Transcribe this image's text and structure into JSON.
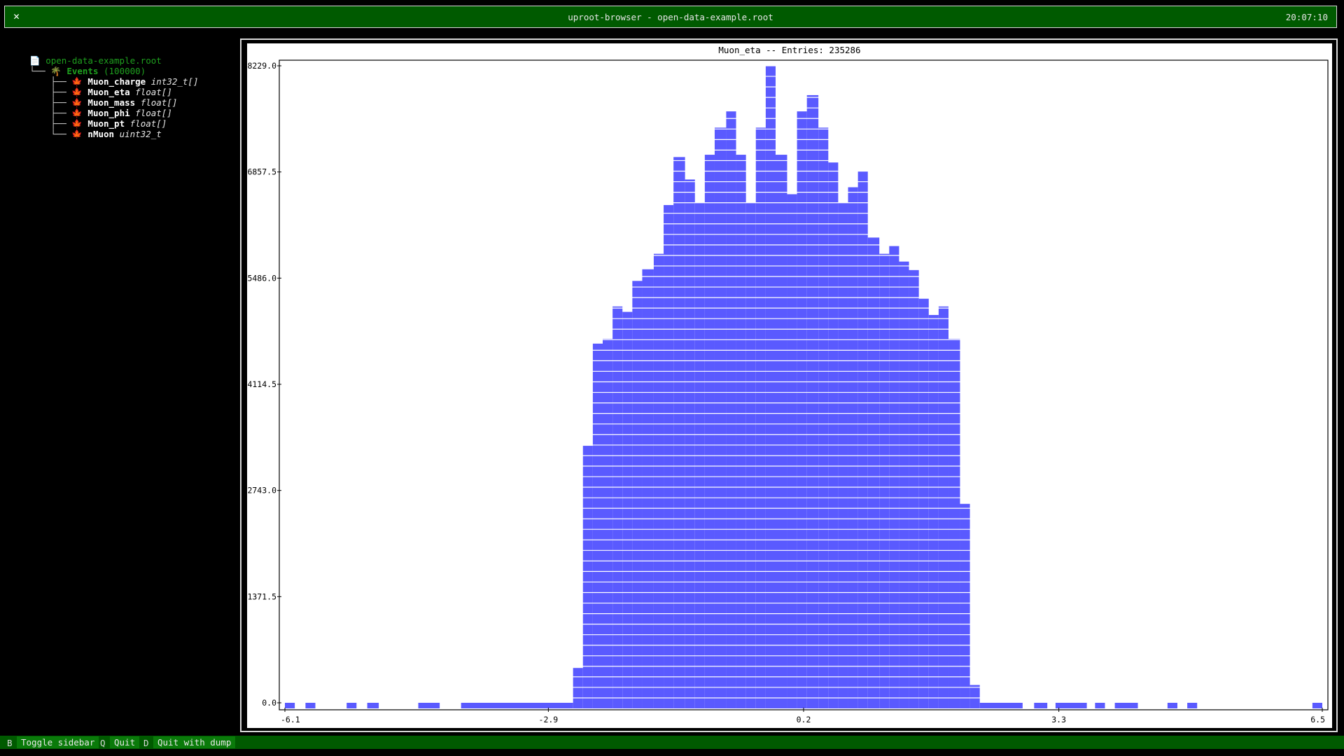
{
  "window": {
    "title": "uproot-browser - open-data-example.root",
    "clock": "20:07:10",
    "close_glyph": "✕"
  },
  "sidebar": {
    "root_file": "open-data-example.root",
    "tree": {
      "name": "Events",
      "count": "(100000)"
    },
    "branches": [
      {
        "name": "Muon_charge",
        "type": "int32_t[]",
        "icon": "leaf-array-icon"
      },
      {
        "name": "Muon_eta",
        "type": "float[]",
        "icon": "leaf-array-icon"
      },
      {
        "name": "Muon_mass",
        "type": "float[]",
        "icon": "leaf-array-icon"
      },
      {
        "name": "Muon_phi",
        "type": "float[]",
        "icon": "leaf-array-icon"
      },
      {
        "name": "Muon_pt",
        "type": "float[]",
        "icon": "leaf-array-icon"
      },
      {
        "name": "nMuon",
        "type": "uint32_t",
        "icon": "leaf-scalar-icon"
      }
    ]
  },
  "plot": {
    "title": "Muon_eta -- Entries: 235286"
  },
  "chart_data": {
    "type": "bar",
    "title": "Muon_eta -- Entries: 235286",
    "xlabel": "",
    "ylabel": "",
    "xlim": [
      -6.1,
      6.5
    ],
    "ylim": [
      0,
      8229.0
    ],
    "xticks": [
      "-6.1",
      "-2.9",
      "0.2",
      "3.3",
      "6.5"
    ],
    "yticks": [
      "0.0",
      "1371.5",
      "2743.0",
      "4114.5",
      "5486.0",
      "6857.5",
      "8229.0"
    ],
    "bar_color": "#5a5aff",
    "grid": false,
    "bins": [
      {
        "x0": -6.1,
        "x1": -5.98,
        "y": 0
      },
      {
        "x0": -5.85,
        "x1": -5.73,
        "y": 0
      },
      {
        "x0": -5.35,
        "x1": -5.23,
        "y": 0
      },
      {
        "x0": -5.1,
        "x1": -4.96,
        "y": 0
      },
      {
        "x0": -4.48,
        "x1": -4.22,
        "y": 0
      },
      {
        "x0": -3.96,
        "x1": -2.6,
        "y": 0
      },
      {
        "x0": -2.6,
        "x1": -2.48,
        "y": 450
      },
      {
        "x0": -2.48,
        "x1": -2.36,
        "y": 3320
      },
      {
        "x0": -2.36,
        "x1": -2.24,
        "y": 4640
      },
      {
        "x0": -2.24,
        "x1": -2.12,
        "y": 4700
      },
      {
        "x0": -2.12,
        "x1": -2.0,
        "y": 5120
      },
      {
        "x0": -2.0,
        "x1": -1.88,
        "y": 5050
      },
      {
        "x0": -1.88,
        "x1": -1.76,
        "y": 5450
      },
      {
        "x0": -1.76,
        "x1": -1.62,
        "y": 5600
      },
      {
        "x0": -1.62,
        "x1": -1.5,
        "y": 5800
      },
      {
        "x0": -1.5,
        "x1": -1.38,
        "y": 6430
      },
      {
        "x0": -1.38,
        "x1": -1.24,
        "y": 7050
      },
      {
        "x0": -1.24,
        "x1": -1.12,
        "y": 6760
      },
      {
        "x0": -1.12,
        "x1": -1.0,
        "y": 6460
      },
      {
        "x0": -1.0,
        "x1": -0.88,
        "y": 7080
      },
      {
        "x0": -0.88,
        "x1": -0.74,
        "y": 7430
      },
      {
        "x0": -0.74,
        "x1": -0.62,
        "y": 7640
      },
      {
        "x0": -0.62,
        "x1": -0.5,
        "y": 7080
      },
      {
        "x0": -0.5,
        "x1": -0.38,
        "y": 6460
      },
      {
        "x0": -0.38,
        "x1": -0.26,
        "y": 7430
      },
      {
        "x0": -0.26,
        "x1": -0.14,
        "y": 8229
      },
      {
        "x0": -0.14,
        "x1": -0.0,
        "y": 7080
      },
      {
        "x0": 0.0,
        "x1": 0.12,
        "y": 6570
      },
      {
        "x0": 0.12,
        "x1": 0.24,
        "y": 7640
      },
      {
        "x0": 0.24,
        "x1": 0.38,
        "y": 7850
      },
      {
        "x0": 0.38,
        "x1": 0.5,
        "y": 7430
      },
      {
        "x0": 0.5,
        "x1": 0.62,
        "y": 6980
      },
      {
        "x0": 0.62,
        "x1": 0.74,
        "y": 6460
      },
      {
        "x0": 0.74,
        "x1": 0.86,
        "y": 6660
      },
      {
        "x0": 0.86,
        "x1": 0.98,
        "y": 6870
      },
      {
        "x0": 0.98,
        "x1": 1.12,
        "y": 6010
      },
      {
        "x0": 1.12,
        "x1": 1.24,
        "y": 5800
      },
      {
        "x0": 1.24,
        "x1": 1.36,
        "y": 5900
      },
      {
        "x0": 1.36,
        "x1": 1.48,
        "y": 5700
      },
      {
        "x0": 1.48,
        "x1": 1.6,
        "y": 5590
      },
      {
        "x0": 1.6,
        "x1": 1.72,
        "y": 5220
      },
      {
        "x0": 1.72,
        "x1": 1.84,
        "y": 5010
      },
      {
        "x0": 1.84,
        "x1": 1.96,
        "y": 5120
      },
      {
        "x0": 1.96,
        "x1": 2.1,
        "y": 4700
      },
      {
        "x0": 2.1,
        "x1": 2.22,
        "y": 2570
      },
      {
        "x0": 2.22,
        "x1": 2.34,
        "y": 230
      },
      {
        "x0": 2.34,
        "x1": 2.86,
        "y": 0
      },
      {
        "x0": 3.0,
        "x1": 3.16,
        "y": 0
      },
      {
        "x0": 3.26,
        "x1": 3.64,
        "y": 0
      },
      {
        "x0": 3.74,
        "x1": 3.86,
        "y": 0
      },
      {
        "x0": 3.98,
        "x1": 4.26,
        "y": 0
      },
      {
        "x0": 4.62,
        "x1": 4.74,
        "y": 0
      },
      {
        "x0": 4.86,
        "x1": 4.98,
        "y": 0
      },
      {
        "x0": 6.38,
        "x1": 6.5,
        "y": 0
      }
    ]
  },
  "statusbar": {
    "items": [
      {
        "key": "B",
        "label": "Toggle sidebar"
      },
      {
        "key": "Q",
        "label": "Quit"
      },
      {
        "key": "D",
        "label": "Quit with dump"
      }
    ]
  }
}
